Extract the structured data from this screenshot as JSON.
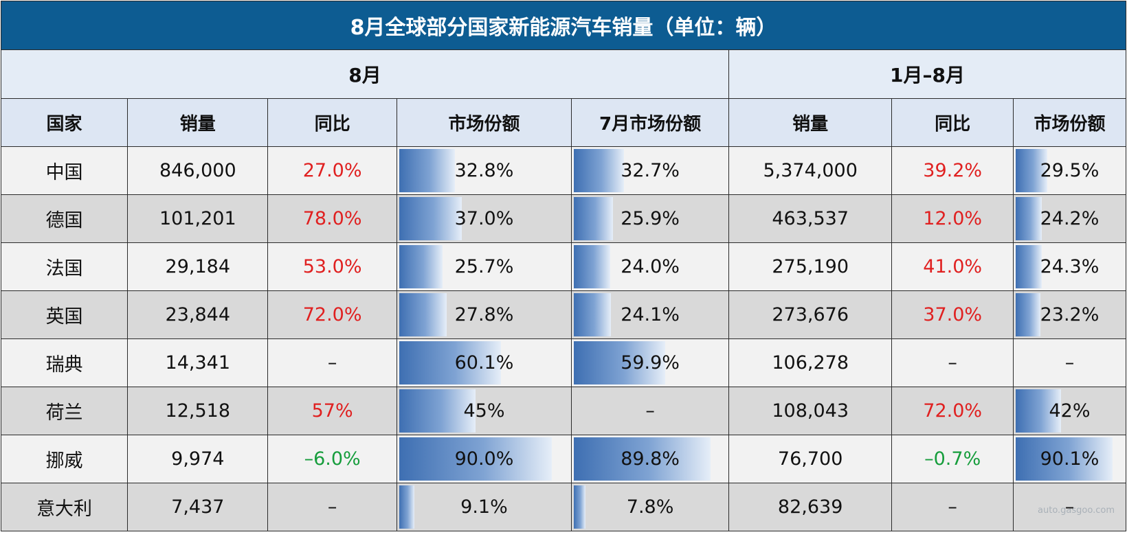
{
  "title": "8月全球部分国家新能源汽车销量（单位：辆）",
  "groups": {
    "aug": "8月",
    "ytd": "1月–8月"
  },
  "columns": [
    "国家",
    "销量",
    "同比",
    "市场份额",
    "7月市场份额",
    "销量",
    "同比",
    "市场份额"
  ],
  "watermark": "auto.gasgoo.com",
  "colors": {
    "title_bg": "#0d5c92",
    "bar": "#3e6fb2",
    "positive": "#e02020",
    "negative": "#169d3c"
  },
  "chart_data": {
    "type": "table",
    "title": "8月全球部分国家新能源汽车销量（单位：辆）",
    "rows": [
      {
        "country": "中国",
        "aug_sales": "846,000",
        "aug_yoy": "27.0%",
        "aug_yoy_sign": "pos",
        "aug_share": "32.8%",
        "aug_share_value": 32.8,
        "jul_share": "32.7%",
        "jul_share_value": 32.7,
        "ytd_sales": "5,374,000",
        "ytd_yoy": "39.2%",
        "ytd_yoy_sign": "pos",
        "ytd_share": "29.5%",
        "ytd_share_value": 29.5
      },
      {
        "country": "德国",
        "aug_sales": "101,201",
        "aug_yoy": "78.0%",
        "aug_yoy_sign": "pos",
        "aug_share": "37.0%",
        "aug_share_value": 37.0,
        "jul_share": "25.9%",
        "jul_share_value": 25.9,
        "ytd_sales": "463,537",
        "ytd_yoy": "12.0%",
        "ytd_yoy_sign": "pos",
        "ytd_share": "24.2%",
        "ytd_share_value": 24.2
      },
      {
        "country": "法国",
        "aug_sales": "29,184",
        "aug_yoy": "53.0%",
        "aug_yoy_sign": "pos",
        "aug_share": "25.7%",
        "aug_share_value": 25.7,
        "jul_share": "24.0%",
        "jul_share_value": 24.0,
        "ytd_sales": "275,190",
        "ytd_yoy": "41.0%",
        "ytd_yoy_sign": "pos",
        "ytd_share": "24.3%",
        "ytd_share_value": 24.3
      },
      {
        "country": "英国",
        "aug_sales": "23,844",
        "aug_yoy": "72.0%",
        "aug_yoy_sign": "pos",
        "aug_share": "27.8%",
        "aug_share_value": 27.8,
        "jul_share": "24.1%",
        "jul_share_value": 24.1,
        "ytd_sales": "273,676",
        "ytd_yoy": "37.0%",
        "ytd_yoy_sign": "pos",
        "ytd_share": "23.2%",
        "ytd_share_value": 23.2
      },
      {
        "country": "瑞典",
        "aug_sales": "14,341",
        "aug_yoy": "–",
        "aug_yoy_sign": "none",
        "aug_share": "60.1%",
        "aug_share_value": 60.1,
        "jul_share": "59.9%",
        "jul_share_value": 59.9,
        "ytd_sales": "106,278",
        "ytd_yoy": "–",
        "ytd_yoy_sign": "none",
        "ytd_share": "–",
        "ytd_share_value": null
      },
      {
        "country": "荷兰",
        "aug_sales": "12,518",
        "aug_yoy": "57%",
        "aug_yoy_sign": "pos",
        "aug_share": "45%",
        "aug_share_value": 45,
        "jul_share": "–",
        "jul_share_value": null,
        "ytd_sales": "108,043",
        "ytd_yoy": "72.0%",
        "ytd_yoy_sign": "pos",
        "ytd_share": "42%",
        "ytd_share_value": 42
      },
      {
        "country": "挪威",
        "aug_sales": "9,974",
        "aug_yoy": "–6.0%",
        "aug_yoy_sign": "neg",
        "aug_share": "90.0%",
        "aug_share_value": 90.0,
        "jul_share": "89.8%",
        "jul_share_value": 89.8,
        "ytd_sales": "76,700",
        "ytd_yoy": "–0.7%",
        "ytd_yoy_sign": "neg",
        "ytd_share": "90.1%",
        "ytd_share_value": 90.1
      },
      {
        "country": "意大利",
        "aug_sales": "7,437",
        "aug_yoy": "–",
        "aug_yoy_sign": "none",
        "aug_share": "9.1%",
        "aug_share_value": 9.1,
        "jul_share": "7.8%",
        "jul_share_value": 7.8,
        "ytd_sales": "82,639",
        "ytd_yoy": "–",
        "ytd_yoy_sign": "none",
        "ytd_share": "–",
        "ytd_share_value": null
      }
    ]
  }
}
